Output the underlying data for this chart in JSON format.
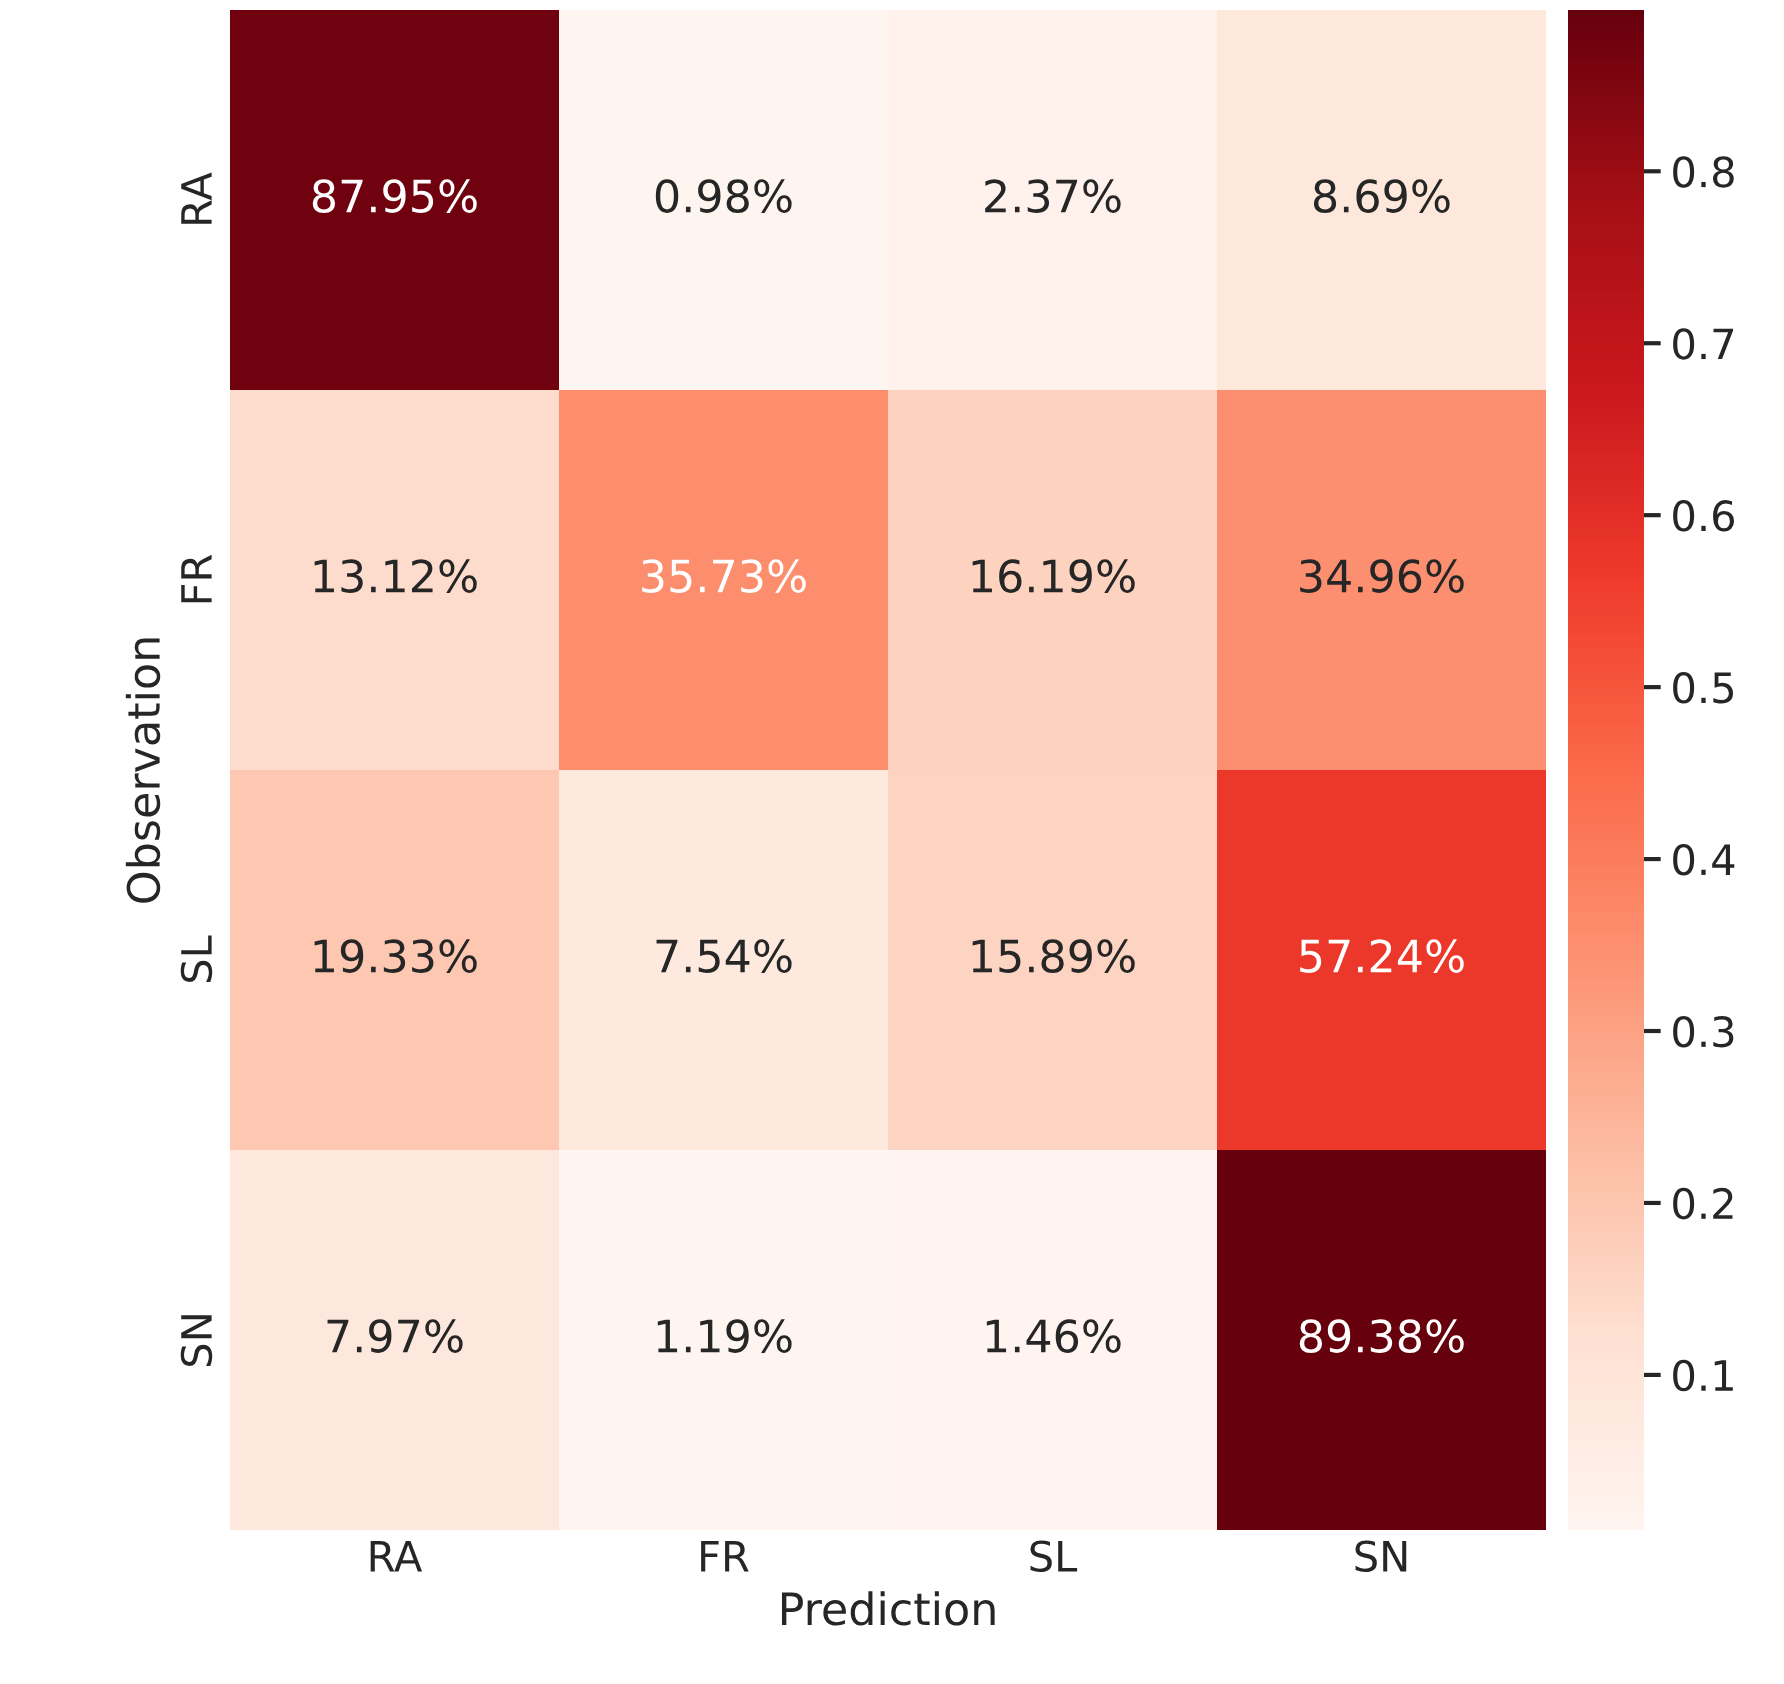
{
  "chart_data": {
    "type": "heatmap",
    "xlabel": "Prediction",
    "ylabel": "Observation",
    "categories": [
      "RA",
      "FR",
      "SL",
      "SN"
    ],
    "y_categories": [
      "RA",
      "FR",
      "SL",
      "SN"
    ],
    "cells": [
      [
        0.8795,
        0.0098,
        0.0237,
        0.0869
      ],
      [
        0.1312,
        0.3573,
        0.1619,
        0.3496
      ],
      [
        0.1933,
        0.0754,
        0.1589,
        0.5724
      ],
      [
        0.0797,
        0.0119,
        0.0146,
        0.8938
      ]
    ],
    "cell_labels": [
      [
        "87.95%",
        "0.98%",
        "2.37%",
        "8.69%"
      ],
      [
        "13.12%",
        "35.73%",
        "16.19%",
        "34.96%"
      ],
      [
        "19.33%",
        "7.54%",
        "15.89%",
        "57.24%"
      ],
      [
        "7.97%",
        "1.19%",
        "1.46%",
        "89.38%"
      ]
    ],
    "clim": [
      0.0098,
      0.8938
    ],
    "cticks": [
      0.1,
      0.2,
      0.3,
      0.4,
      0.5,
      0.6,
      0.7,
      0.8
    ]
  }
}
